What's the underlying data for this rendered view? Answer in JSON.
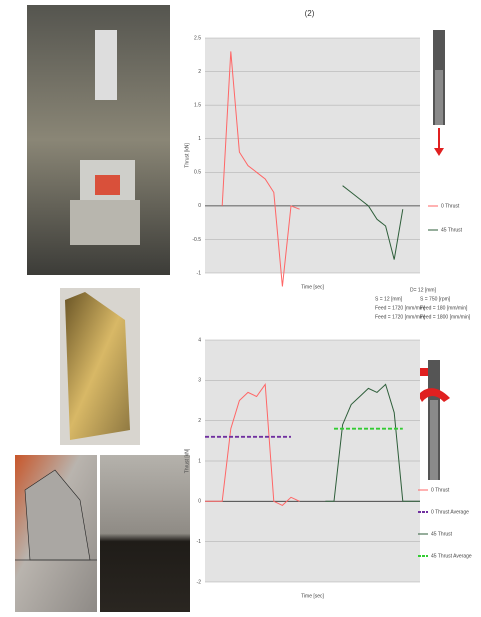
{
  "chart_data": [
    {
      "type": "line",
      "title": "(2)",
      "x_label": "Time [sec]",
      "y_label": "Thrust [kN]",
      "x": [
        0,
        4,
        8,
        12,
        16,
        20,
        24,
        28,
        32,
        36,
        40,
        44,
        48,
        52,
        56,
        60,
        64,
        68,
        72,
        76,
        80,
        84,
        88,
        92,
        96,
        100
      ],
      "xlim": [
        0,
        100
      ],
      "ylim": [
        -1.0,
        2.5
      ],
      "yticks": [
        2.5,
        2.0,
        1.5,
        1.0,
        0.5,
        0,
        -0.5,
        -1.0
      ],
      "grid": true,
      "series": [
        {
          "name": "0 Thrust",
          "color": "#ff6666",
          "dash": false,
          "values": [
            null,
            null,
            0,
            2.3,
            0.8,
            0.6,
            0.5,
            0.4,
            0.2,
            -1.2,
            0.0,
            -0.05,
            null,
            null,
            null,
            null,
            null,
            null,
            null,
            null,
            null,
            null,
            null,
            null,
            null,
            null
          ]
        },
        {
          "name": "45 Thrust",
          "color": "#2e5e3a",
          "dash": false,
          "values": [
            null,
            null,
            null,
            null,
            null,
            null,
            null,
            null,
            null,
            null,
            null,
            null,
            null,
            null,
            null,
            null,
            0.3,
            0.2,
            0.1,
            0.0,
            -0.2,
            -0.3,
            -0.8,
            -0.05,
            null,
            null
          ]
        }
      ]
    },
    {
      "type": "line",
      "x_label": "Time [sec]",
      "y_label": "Thrust [kN]",
      "annotations": [
        "D= 12 [mm]",
        "S = 12 [mm]",
        "S = 750 [rpm]",
        "Feed = 1720 [mm/min]",
        "Feed = 180 [mm/min]",
        "Feed = 1720 [mm/min]",
        "Feed = 1800 [mm/min]"
      ],
      "x": [
        0,
        4,
        8,
        12,
        16,
        20,
        24,
        28,
        32,
        36,
        40,
        44,
        48,
        52,
        56,
        60,
        64,
        68,
        72,
        76,
        80,
        84,
        88,
        92,
        96,
        100
      ],
      "xlim": [
        0,
        100
      ],
      "ylim": [
        -2,
        4
      ],
      "yticks": [
        4,
        3,
        2,
        1,
        0,
        -1,
        -2
      ],
      "grid": true,
      "series": [
        {
          "name": "0 Thrust",
          "color": "#ff6666",
          "dash": false,
          "values": [
            0,
            0,
            0,
            1.8,
            2.5,
            2.7,
            2.6,
            2.9,
            0,
            -0.1,
            0.1,
            0,
            null,
            null,
            null,
            null,
            null,
            null,
            null,
            null,
            null,
            null,
            null,
            null,
            null,
            null
          ]
        },
        {
          "name": "0 Thrust Average",
          "color": "#7030a0",
          "dash": true,
          "values": [
            1.6,
            1.6,
            1.6,
            1.6,
            1.6,
            1.6,
            1.6,
            1.6,
            1.6,
            1.6,
            1.6,
            null,
            null,
            null,
            null,
            null,
            null,
            null,
            null,
            null,
            null,
            null,
            null,
            null,
            null,
            null
          ]
        },
        {
          "name": "45 Thrust",
          "color": "#2e5e3a",
          "dash": false,
          "values": [
            null,
            null,
            null,
            null,
            null,
            null,
            null,
            null,
            null,
            null,
            null,
            null,
            null,
            null,
            0,
            0,
            1.9,
            2.4,
            2.6,
            2.8,
            2.7,
            2.9,
            2.2,
            0,
            0,
            0
          ]
        },
        {
          "name": "45 Thrust Average",
          "color": "#33cc33",
          "dash": true,
          "values": [
            null,
            null,
            null,
            null,
            null,
            null,
            null,
            null,
            null,
            null,
            null,
            null,
            null,
            null,
            null,
            1.8,
            1.8,
            1.8,
            1.8,
            1.8,
            1.8,
            1.8,
            1.8,
            1.8,
            null,
            null
          ]
        }
      ]
    }
  ]
}
